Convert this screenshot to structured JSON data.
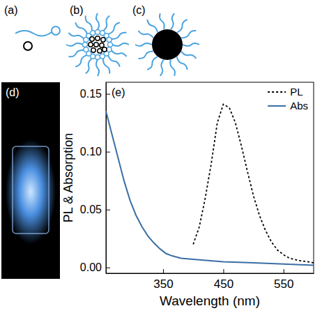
{
  "panels": {
    "labels": [
      "(a)",
      "(b)",
      "(c)",
      "(d)"
    ]
  },
  "chart_data": {
    "type": "line",
    "panel_label": "(e)",
    "x_label": "Wavelength (nm)",
    "y_label": "PL & Absorption",
    "xlim": [
      255,
      600
    ],
    "xticks": [
      350,
      450,
      550
    ],
    "ylim": [
      -0.005,
      0.16
    ],
    "yticks": [
      {
        "value": 0,
        "label": "0.00"
      },
      0.05,
      {
        "value": 0.1,
        "label": "0.10"
      },
      0.15
    ],
    "legend": "top-right",
    "series": [
      {
        "name": "PL",
        "color": "#000000",
        "line_style": "dotted",
        "x": [
          400,
          410,
          420,
          430,
          440,
          450,
          460,
          470,
          480,
          490,
          500,
          510,
          520,
          530,
          540,
          550,
          560,
          575,
          590,
          600
        ],
        "values": [
          0.02,
          0.035,
          0.06,
          0.09,
          0.125,
          0.141,
          0.138,
          0.125,
          0.105,
          0.083,
          0.062,
          0.045,
          0.032,
          0.022,
          0.015,
          0.011,
          0.008,
          0.006,
          0.005,
          0.004
        ]
      },
      {
        "name": "Abs",
        "color": "#3a6ea5",
        "line_style": "solid",
        "x": [
          255,
          265,
          275,
          285,
          295,
          305,
          315,
          325,
          335,
          345,
          355,
          365,
          380,
          400,
          450,
          500,
          550,
          600
        ],
        "values": [
          0.135,
          0.115,
          0.095,
          0.075,
          0.058,
          0.045,
          0.035,
          0.027,
          0.021,
          0.016,
          0.012,
          0.01,
          0.008,
          0.007,
          0.005,
          0.004,
          0.003,
          0.002
        ]
      }
    ]
  }
}
